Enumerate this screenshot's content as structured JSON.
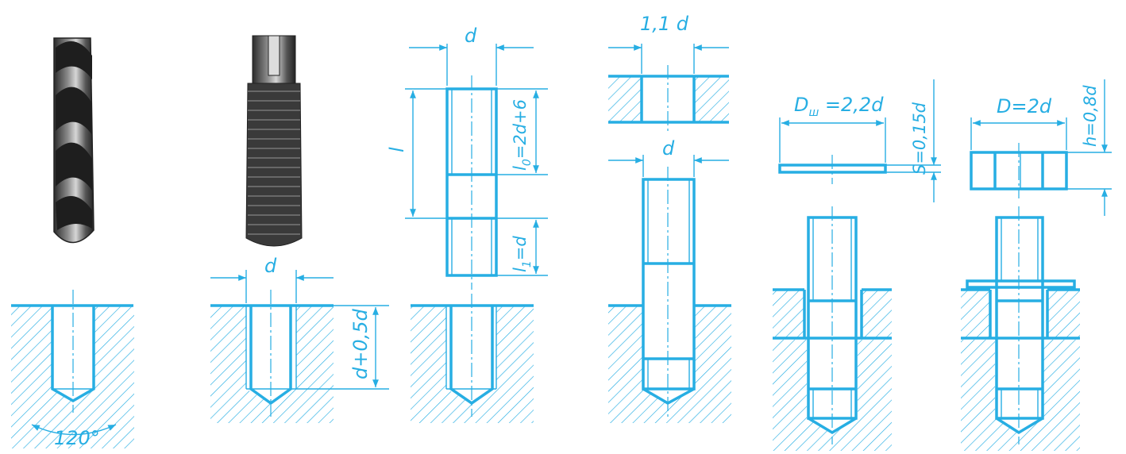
{
  "colors": {
    "line": "#27aee3",
    "steel": "#3a3a3a",
    "steel_light": "#9a9a9a"
  },
  "icons": {
    "drill": "drill-bit-icon",
    "tap": "tap-tool-icon"
  },
  "labels": {
    "angle": "120°",
    "tap_d": "d",
    "depth": "d+0,5d",
    "stud_d": "d",
    "stud_l": "l",
    "stud_l0": "l",
    "stud_l0_sub": "0",
    "stud_l0_val": "=2d+6",
    "stud_l1": "l",
    "stud_l1_sub": "1",
    "stud_l1_val": "=d",
    "part_hole": "1,1 d",
    "stud_d2": "d",
    "washer_D": "D",
    "washer_D_sub": "ш",
    "washer_D_val": " =2,2d",
    "washer_S": "S=0,15d",
    "nut_D": "D=2d",
    "nut_h": "h=0,8d"
  }
}
